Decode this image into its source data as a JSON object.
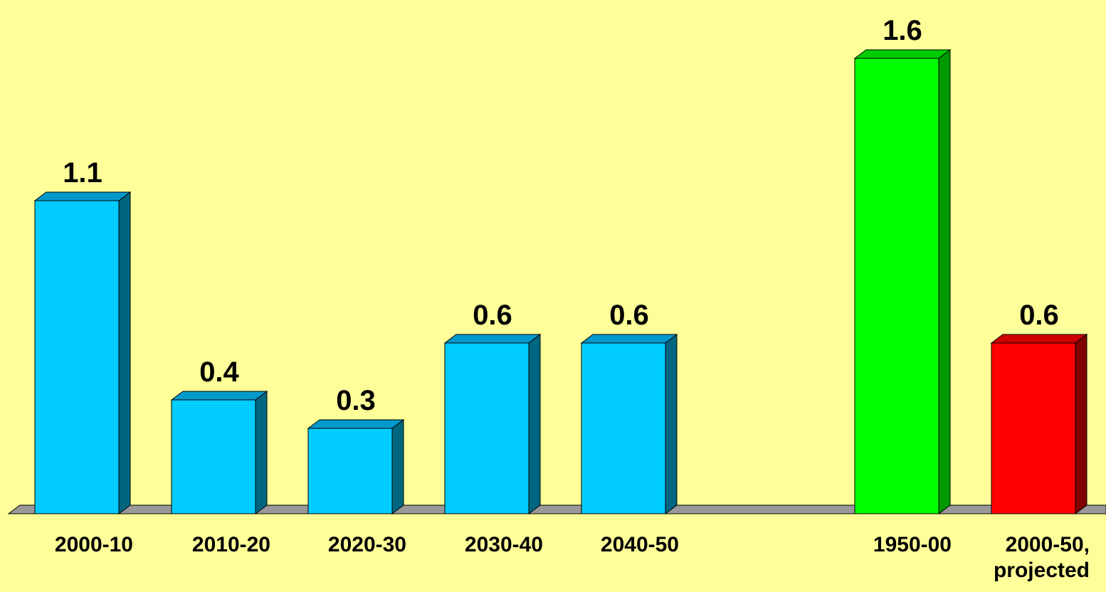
{
  "colors": {
    "background": "#FFFF99",
    "floor_face": "#999999",
    "floor_edge": "#000000"
  },
  "chart_data": {
    "type": "bar",
    "style": "3d-columns",
    "title": "",
    "xlabel": "",
    "ylabel": "",
    "grid": false,
    "legend": "none",
    "ylim": [
      0,
      1.7
    ],
    "bars": [
      {
        "category": "2000-10",
        "value": 1.1,
        "value_label": "1.1",
        "color": "#00CCFF",
        "side_color": "#006680",
        "top_color": "#0099CC"
      },
      {
        "category": "2010-20",
        "value": 0.4,
        "value_label": "0.4",
        "color": "#00CCFF",
        "side_color": "#006680",
        "top_color": "#0099CC"
      },
      {
        "category": "2020-30",
        "value": 0.3,
        "value_label": "0.3",
        "color": "#00CCFF",
        "side_color": "#006680",
        "top_color": "#0099CC"
      },
      {
        "category": "2030-40",
        "value": 0.6,
        "value_label": "0.6",
        "color": "#00CCFF",
        "side_color": "#006680",
        "top_color": "#0099CC"
      },
      {
        "category": "2040-50",
        "value": 0.6,
        "value_label": "0.6",
        "color": "#00CCFF",
        "side_color": "#006680",
        "top_color": "#0099CC"
      },
      {
        "category": "1950-00",
        "value": 1.6,
        "value_label": "1.6",
        "color": "#00FF00",
        "side_color": "#009900",
        "top_color": "#00CC00"
      },
      {
        "category": "2000-50,\nprojected",
        "value": 0.6,
        "value_label": "0.6",
        "color": "#FF0000",
        "side_color": "#800000",
        "top_color": "#CC0000"
      }
    ]
  }
}
